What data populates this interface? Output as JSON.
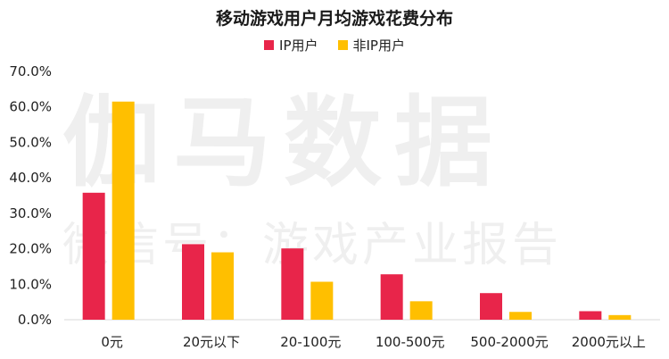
{
  "chart_data": {
    "type": "bar",
    "title": "移动游戏用户月均游戏花费分布",
    "categories": [
      "0元",
      "20元以下",
      "20-100元",
      "100-500元",
      "500-2000元",
      "2000元以上"
    ],
    "series": [
      {
        "name": "IP用户",
        "color": "#e8254a",
        "values": [
          35.8,
          21.3,
          20.1,
          12.8,
          7.5,
          2.4
        ]
      },
      {
        "name": "非IP用户",
        "color": "#ffbf00",
        "values": [
          61.5,
          19.0,
          10.7,
          5.2,
          2.2,
          1.3
        ]
      }
    ],
    "yticks": [
      "0.0%",
      "10.0%",
      "20.0%",
      "30.0%",
      "40.0%",
      "50.0%",
      "60.0%",
      "70.0%"
    ],
    "ylim": [
      0,
      70
    ],
    "xlabel": "",
    "ylabel": ""
  },
  "watermark": {
    "line1": "伽马数据",
    "line2": "微信号：游戏产业报告"
  }
}
